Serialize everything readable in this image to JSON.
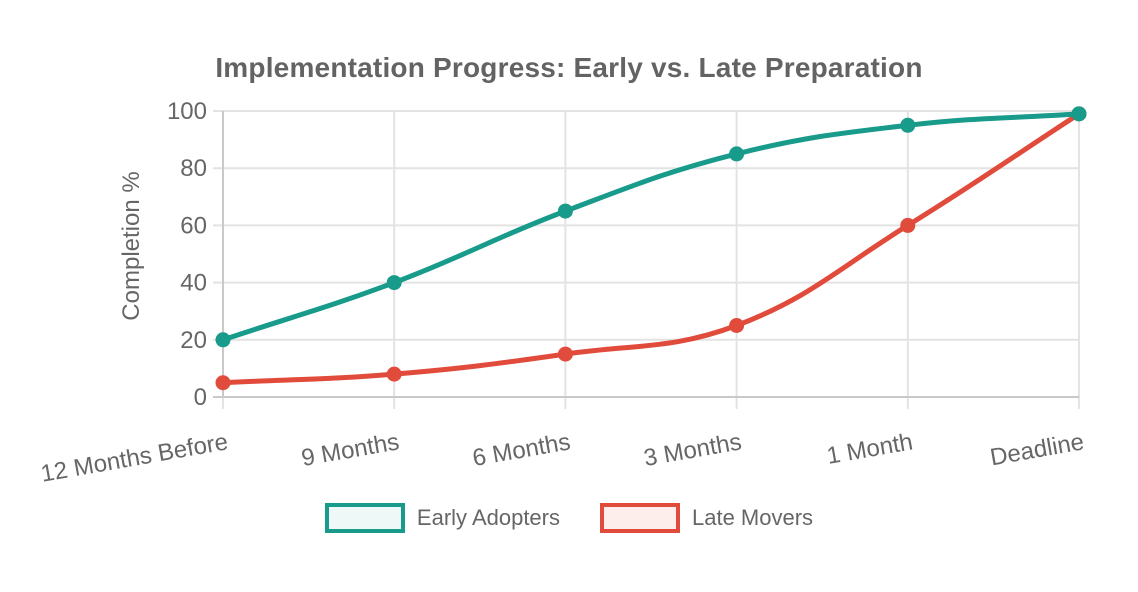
{
  "chart_data": {
    "type": "line",
    "title": "Implementation Progress: Early vs. Late Preparation",
    "ylabel": "Completion %",
    "xlabel": "",
    "categories": [
      "12 Months Before",
      "9 Months",
      "6 Months",
      "3 Months",
      "1 Month",
      "Deadline"
    ],
    "series": [
      {
        "name": "Early Adopters",
        "values": [
          20,
          40,
          65,
          85,
          95,
          99
        ],
        "color": "#189b8a",
        "legend_fill": "#eef8f6"
      },
      {
        "name": "Late Movers",
        "values": [
          5,
          8,
          15,
          25,
          60,
          99
        ],
        "color": "#e14b3c",
        "legend_fill": "#fdeeec"
      }
    ],
    "yticks": [
      0,
      20,
      40,
      60,
      80,
      100
    ],
    "ylim": [
      0,
      100
    ],
    "grid": true,
    "curve": "smooth",
    "legend_position": "bottom",
    "colors": {
      "grid": "#e3e3e3",
      "axis": "#c9c9c9",
      "tick_text": "#666666",
      "title_text": "#636363",
      "background": "#ffffff"
    }
  }
}
